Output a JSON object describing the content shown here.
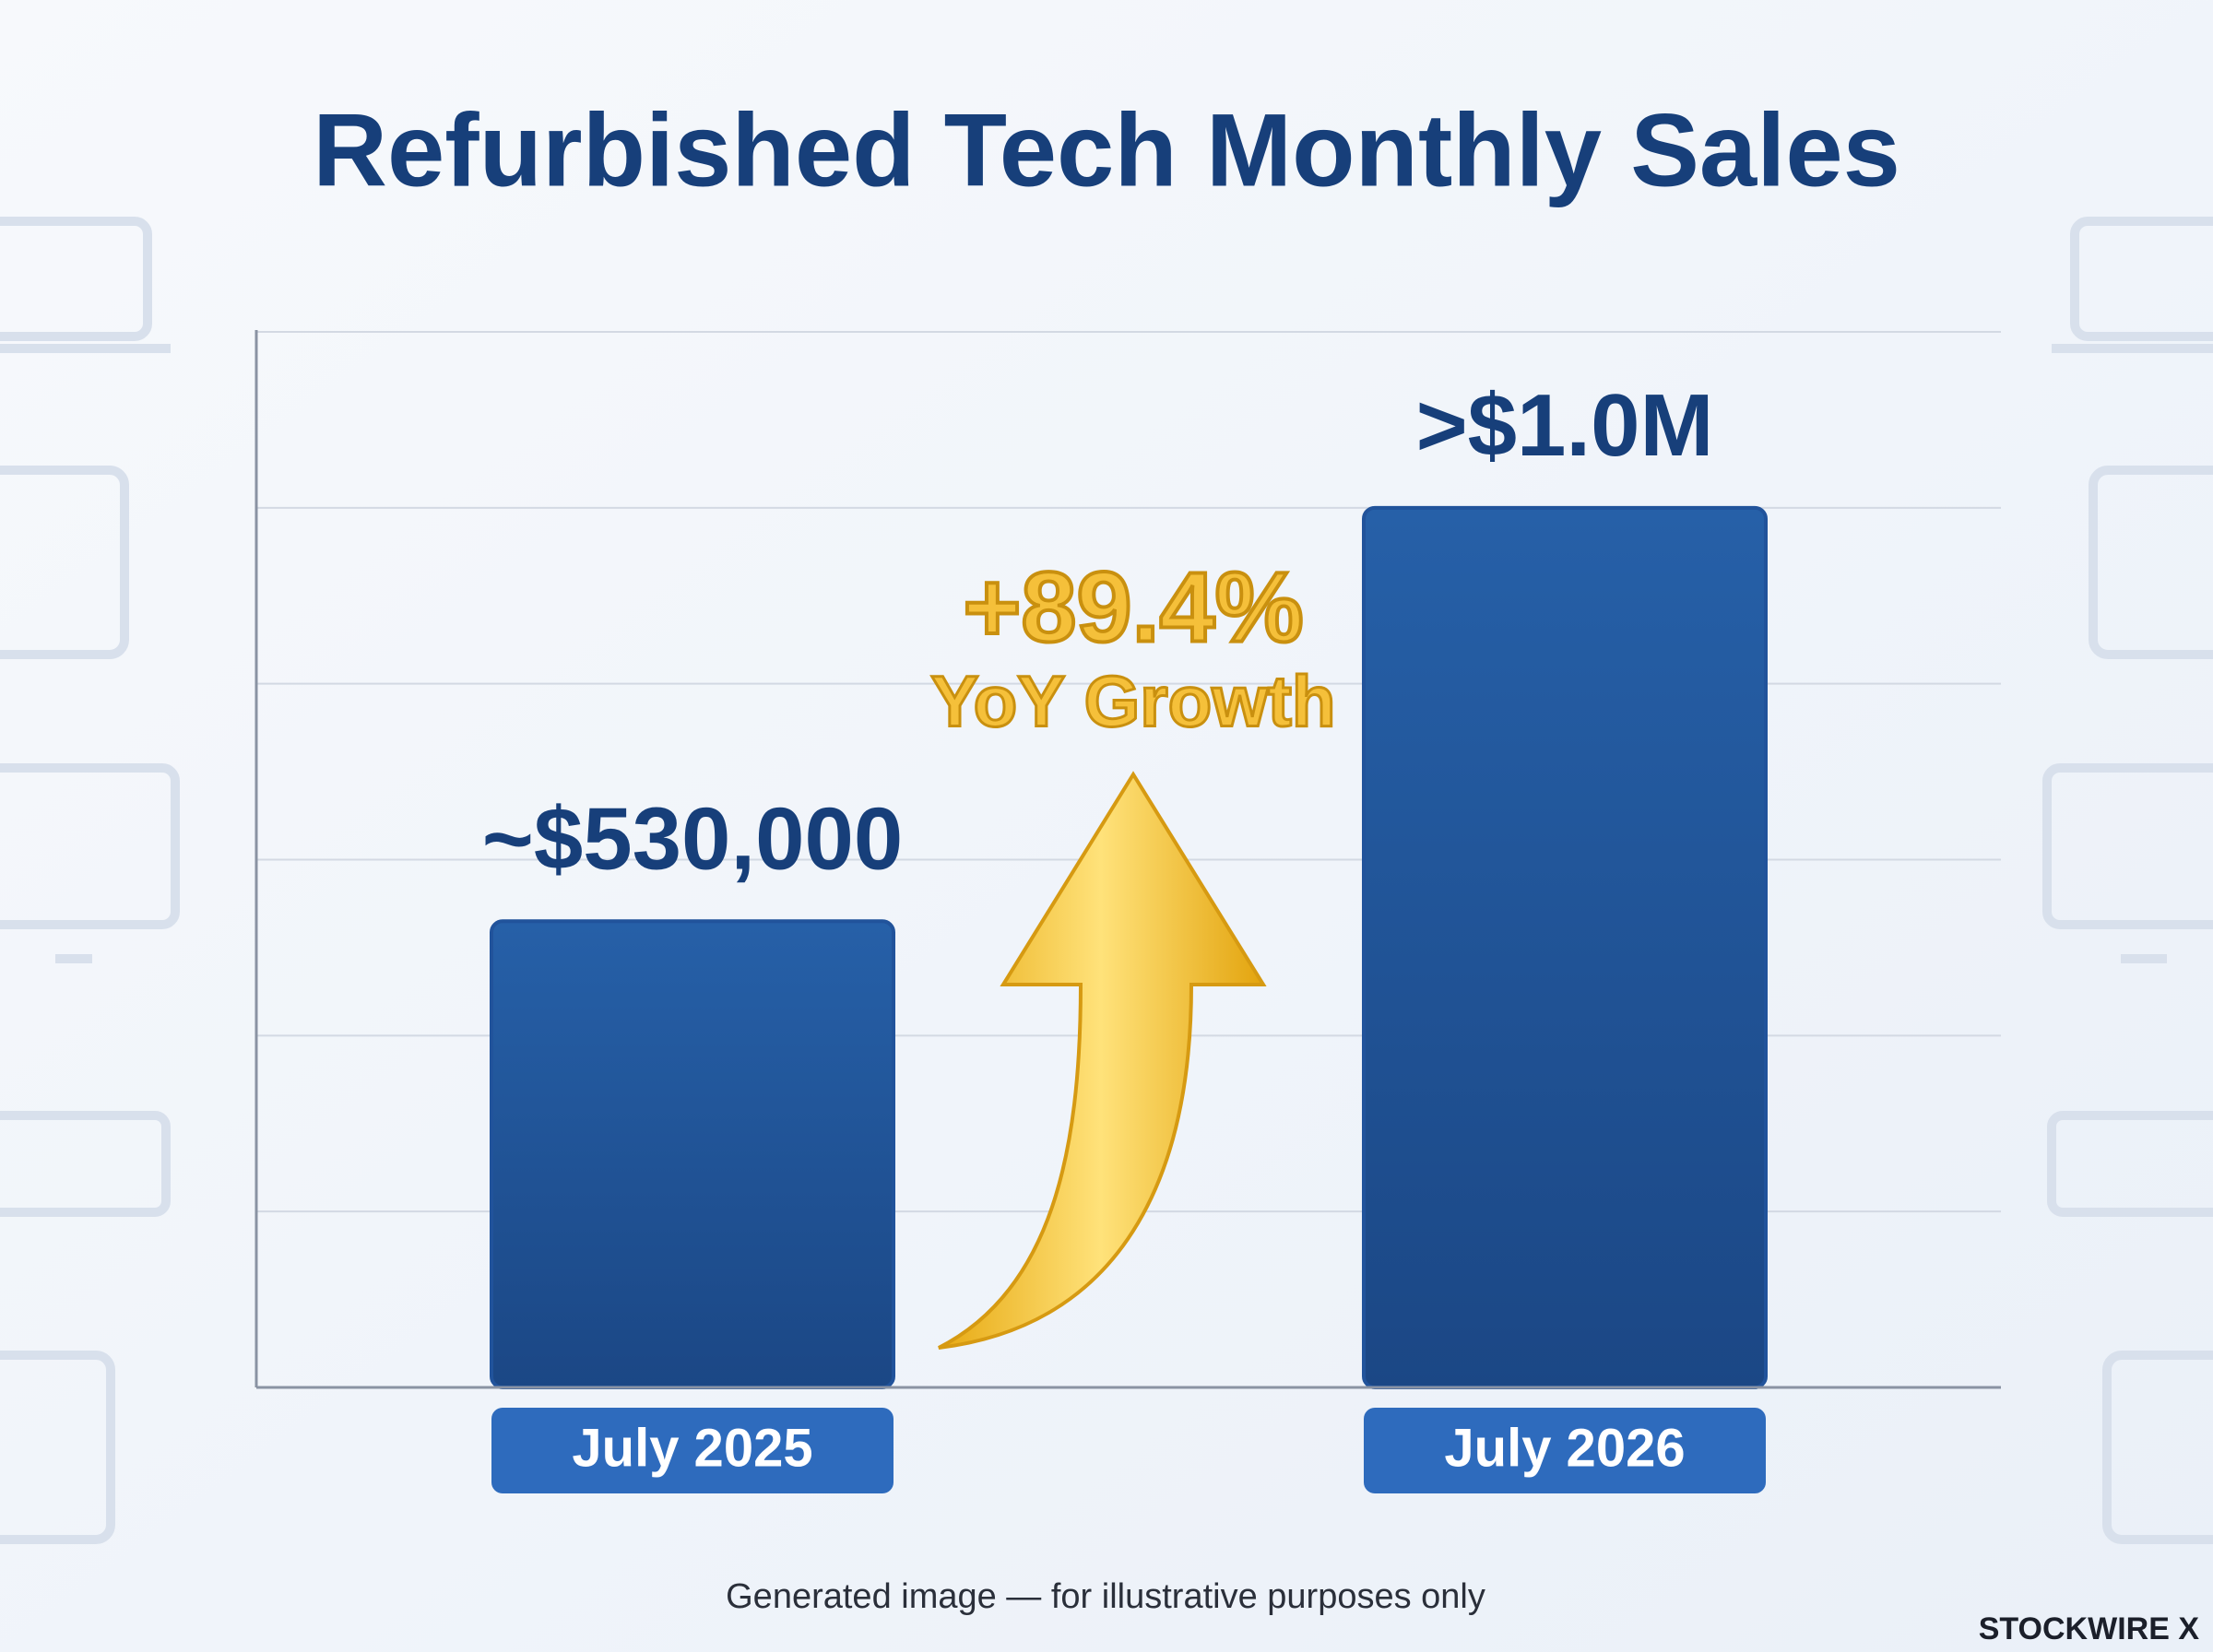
{
  "chart_data": {
    "type": "bar",
    "title": "Refurbished Tech Monthly Sales",
    "categories": [
      "July 2025",
      "July 2026"
    ],
    "values": [
      530000,
      1000000
    ],
    "value_labels": [
      "~$530,000",
      ">$1.0M"
    ],
    "color": "#21539b",
    "ylim": [
      0,
      1200000
    ],
    "yticks": [
      0,
      200000,
      400000,
      600000,
      800000,
      1000000,
      1200000
    ],
    "grid": true,
    "tick_labels": false,
    "annotations": [
      "+89.4%",
      "YoY Growth"
    ],
    "footer": "Generated image — for illustrative purposes only",
    "brand": "STOCKWIRE X"
  }
}
